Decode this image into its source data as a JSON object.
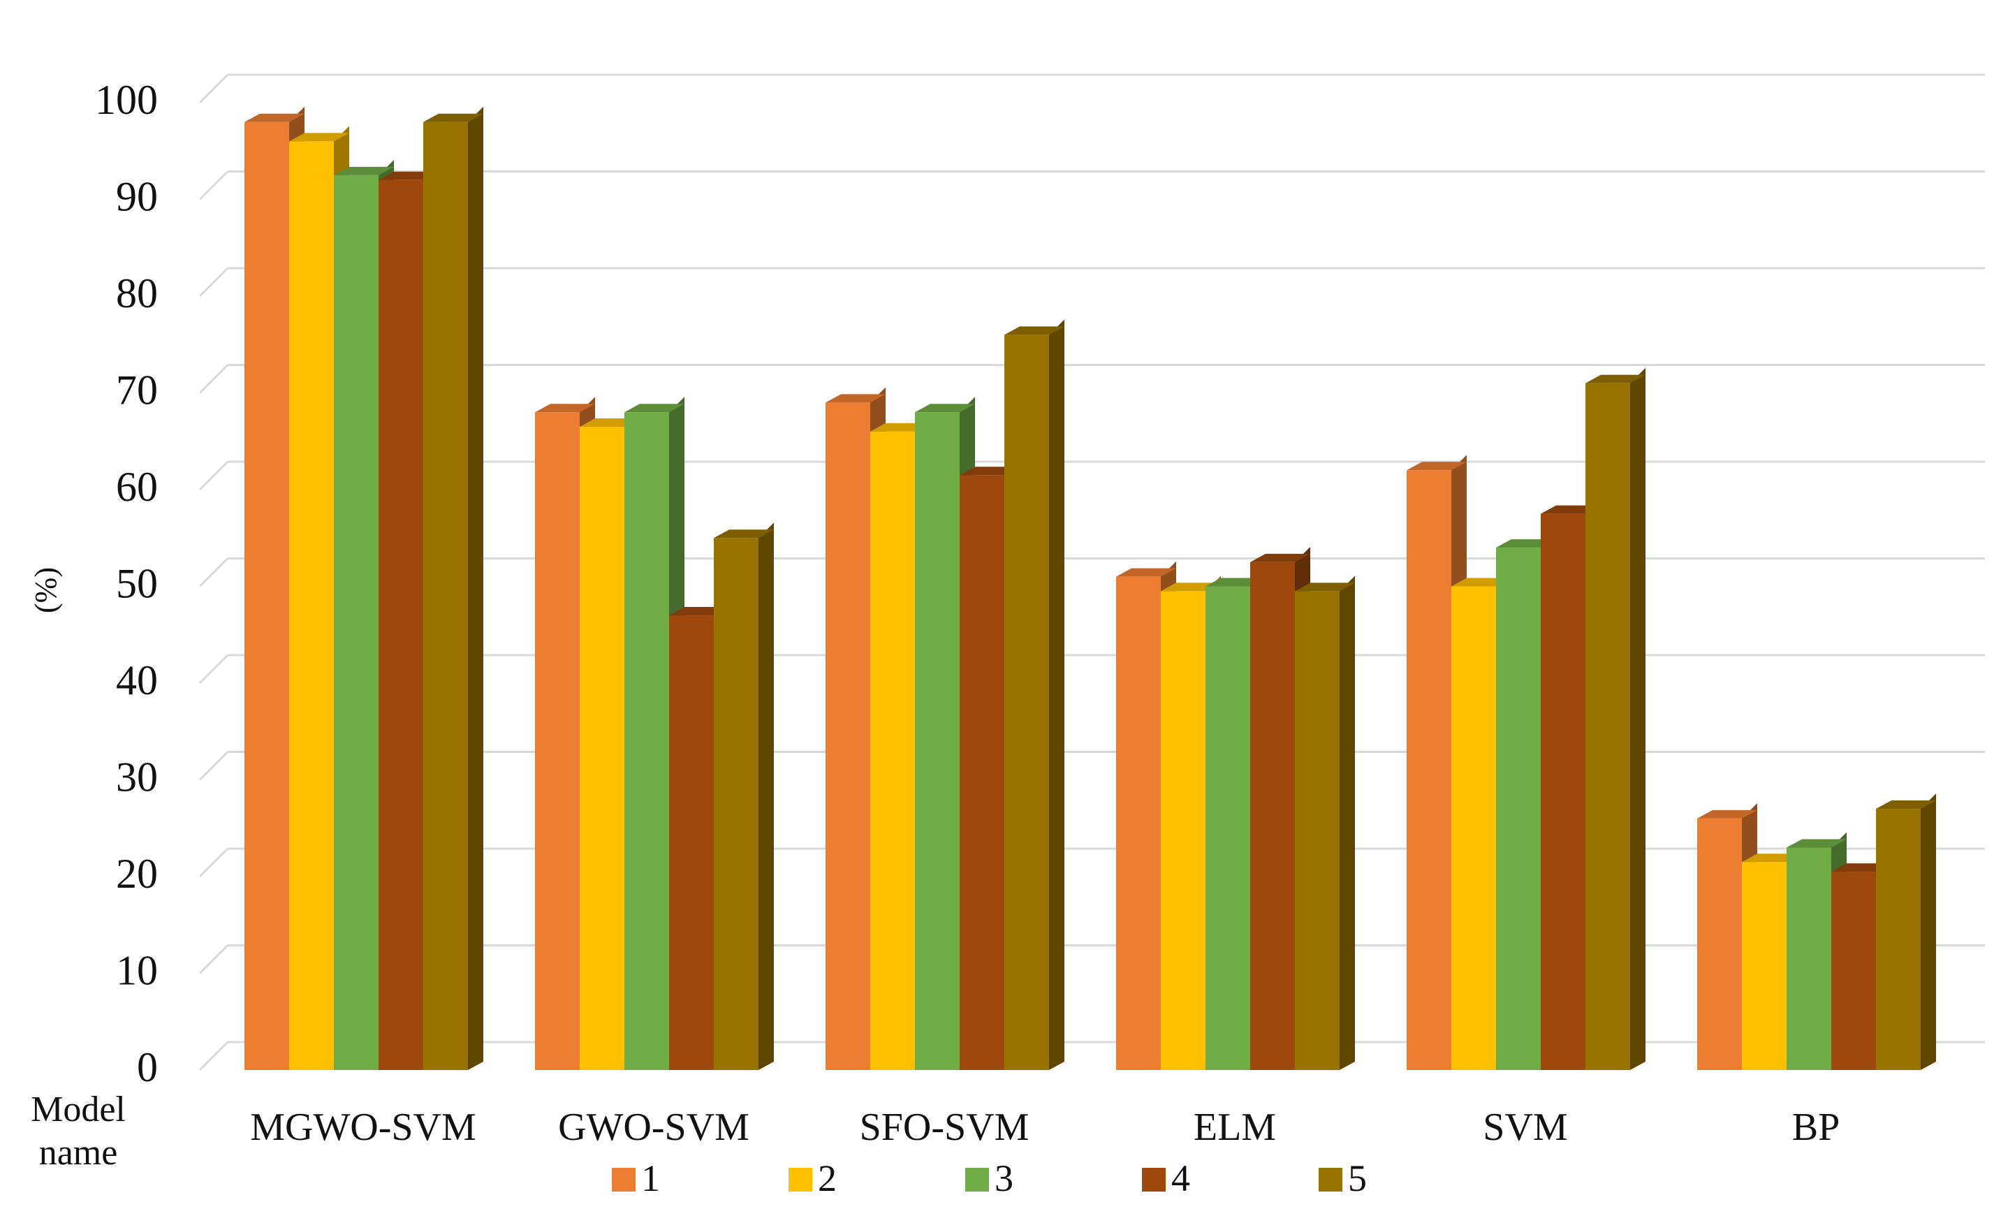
{
  "chart_data": {
    "type": "bar",
    "title": "",
    "xlabel": "Model name",
    "ylabel": "(%)",
    "ylim": [
      0,
      100
    ],
    "yticks": [
      "0",
      "10",
      "20",
      "30",
      "40",
      "50",
      "60",
      "70",
      "80",
      "90",
      "100"
    ],
    "grid": true,
    "legend_position": "bottom",
    "categories": [
      "MGWO-SVM",
      "GWO-SVM",
      "SFO-SVM",
      "ELM",
      "SVM",
      "BP"
    ],
    "series": [
      {
        "name": "1",
        "color": "#ED7D31",
        "values": [
          98,
          68,
          69,
          51,
          62,
          26
        ]
      },
      {
        "name": "2",
        "color": "#FFC000",
        "values": [
          96,
          66.5,
          66,
          49.5,
          50,
          21.5
        ]
      },
      {
        "name": "3",
        "color": "#70AD47",
        "values": [
          92.5,
          68,
          68,
          50,
          54,
          23
        ]
      },
      {
        "name": "4",
        "color": "#9E480E",
        "values": [
          92,
          47,
          61.5,
          52.5,
          57.5,
          20.5
        ]
      },
      {
        "name": "5",
        "color": "#997300",
        "values": [
          98,
          55,
          76,
          49.5,
          71,
          27
        ]
      }
    ]
  }
}
